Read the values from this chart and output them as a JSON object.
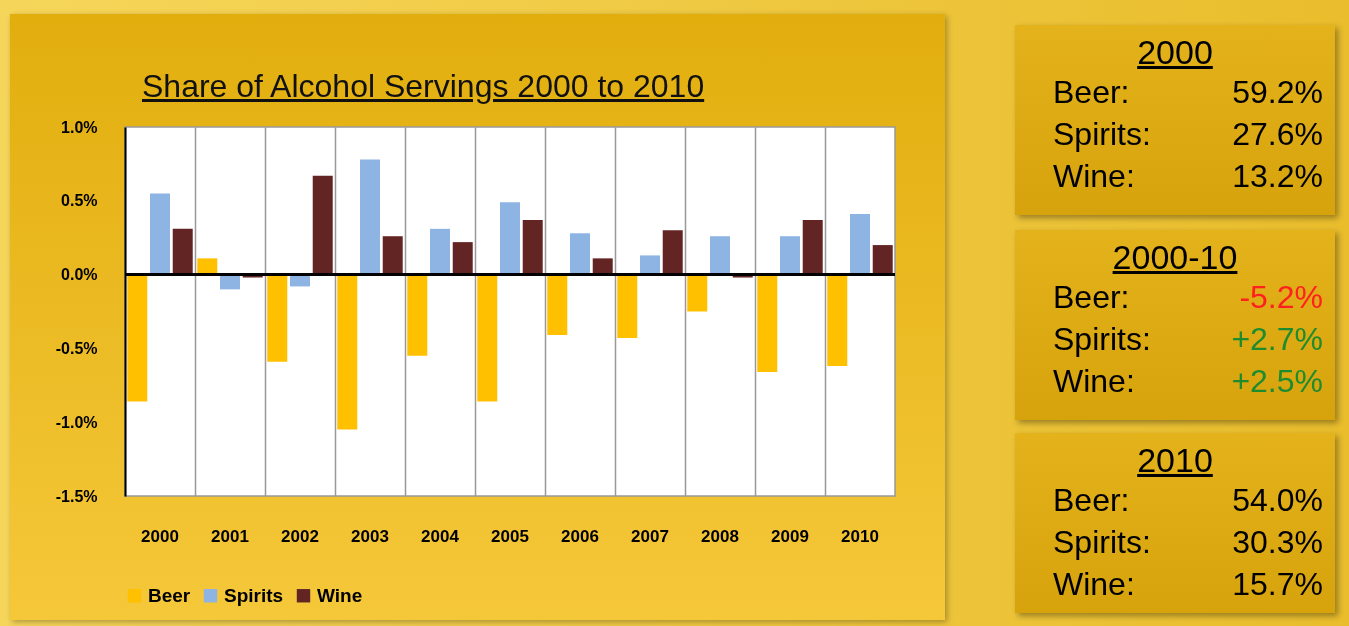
{
  "chart_data": [
    {
      "type": "bar",
      "title": "Share of Alcohol Servings 2000 to 2010",
      "categories": [
        "2000",
        "2001",
        "2002",
        "2003",
        "2004",
        "2005",
        "2006",
        "2007",
        "2008",
        "2009",
        "2010"
      ],
      "series": [
        {
          "name": "Beer",
          "color": "#ffc000",
          "values": [
            -0.86,
            0.11,
            -0.59,
            -1.05,
            -0.55,
            -0.86,
            -0.41,
            -0.43,
            -0.25,
            -0.66,
            -0.62
          ]
        },
        {
          "name": "Spirits",
          "color": "#8db4e2",
          "values": [
            0.55,
            -0.1,
            -0.08,
            0.78,
            0.31,
            0.49,
            0.28,
            0.13,
            0.26,
            0.26,
            0.41
          ]
        },
        {
          "name": "Wine",
          "color": "#632523",
          "values": [
            0.31,
            -0.02,
            0.67,
            0.26,
            0.22,
            0.37,
            0.11,
            0.3,
            -0.02,
            0.37,
            0.2
          ]
        }
      ],
      "ylim": [
        -1.5,
        1.0
      ],
      "yticks": [
        {
          "value": -1.5,
          "label": "-1.5%"
        },
        {
          "value": -1.0,
          "label": "-1.0%"
        },
        {
          "value": -0.5,
          "label": "-0.5%"
        },
        {
          "value": 0,
          "label": "0.0%"
        },
        {
          "value": 0.5,
          "label": "0.5%"
        },
        {
          "value": 1.0,
          "label": "1.0%"
        }
      ],
      "grid": "x",
      "legend": "bottom"
    },
    {
      "type": "other",
      "title": "2000",
      "annotations": [
        "Beer:",
        "59.2%",
        "Spirits:",
        "27.6%",
        "Wine:",
        "13.2%"
      ],
      "colors": [
        "#000000",
        "#000000",
        "#000000",
        "#000000",
        "#000000",
        "#000000"
      ]
    },
    {
      "type": "other",
      "title": "2000-10",
      "annotations": [
        "Beer:",
        "-5.2%",
        "Spirits:",
        "+2.7%",
        "Wine:",
        "+2.5%"
      ],
      "colors": [
        "#000000",
        "#ff2020",
        "#000000",
        "#1e8c2e",
        "#000000",
        "#1e8c2e"
      ]
    },
    {
      "type": "other",
      "title": "2010",
      "annotations": [
        "Beer:",
        "54.0%",
        "Spirits:",
        "30.3%",
        "Wine:",
        "15.7%"
      ],
      "colors": [
        "#000000",
        "#000000",
        "#000000",
        "#000000",
        "#000000",
        "#000000"
      ]
    }
  ]
}
